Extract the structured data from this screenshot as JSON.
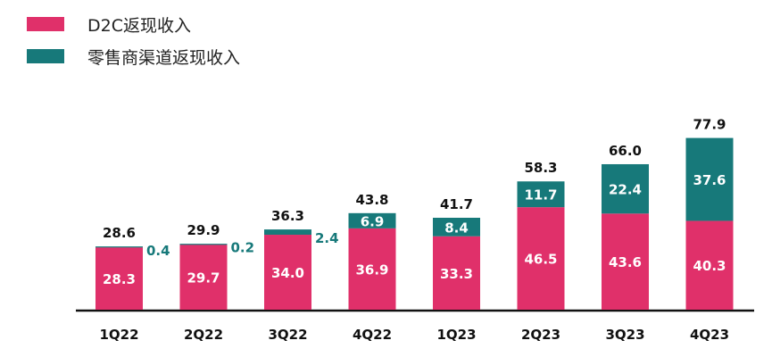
{
  "colors": {
    "d2c": "#E0306A",
    "retail": "#17797A",
    "axis": "#111111",
    "total_text": "#111111",
    "inside_text": "#ffffff"
  },
  "legend": [
    {
      "label": "D2C返现收入",
      "color": "#E0306A"
    },
    {
      "label": "零售商渠道返现收入",
      "color": "#17797A"
    }
  ],
  "chart_data": {
    "type": "bar",
    "stacked": true,
    "categories": [
      "1Q22",
      "2Q22",
      "3Q22",
      "4Q22",
      "1Q23",
      "2Q23",
      "3Q23",
      "4Q23"
    ],
    "series": [
      {
        "name": "D2C返现收入",
        "values": [
          28.3,
          29.7,
          34.0,
          36.9,
          33.3,
          46.5,
          43.6,
          40.3
        ]
      },
      {
        "name": "零售商渠道返现收入",
        "values": [
          0.4,
          0.2,
          2.4,
          6.9,
          8.4,
          11.7,
          22.4,
          37.6
        ]
      }
    ],
    "value_labels": {
      "d2c": [
        "28.3",
        "29.7",
        "34.0",
        "36.9",
        "33.3",
        "46.5",
        "43.6",
        "40.3"
      ],
      "retail": [
        "0.4",
        "0.2",
        "2.4",
        "6.9",
        "8.4",
        "11.7",
        "22.4",
        "37.6"
      ]
    },
    "totals": [
      "28.6",
      "29.9",
      "36.3",
      "43.8",
      "41.7",
      "58.3",
      "66.0",
      "77.9"
    ],
    "retail_label_outside": [
      true,
      true,
      true,
      false,
      false,
      false,
      false,
      false
    ],
    "ylim": [
      0,
      80
    ],
    "grid": false,
    "legend_position": "top-left"
  }
}
